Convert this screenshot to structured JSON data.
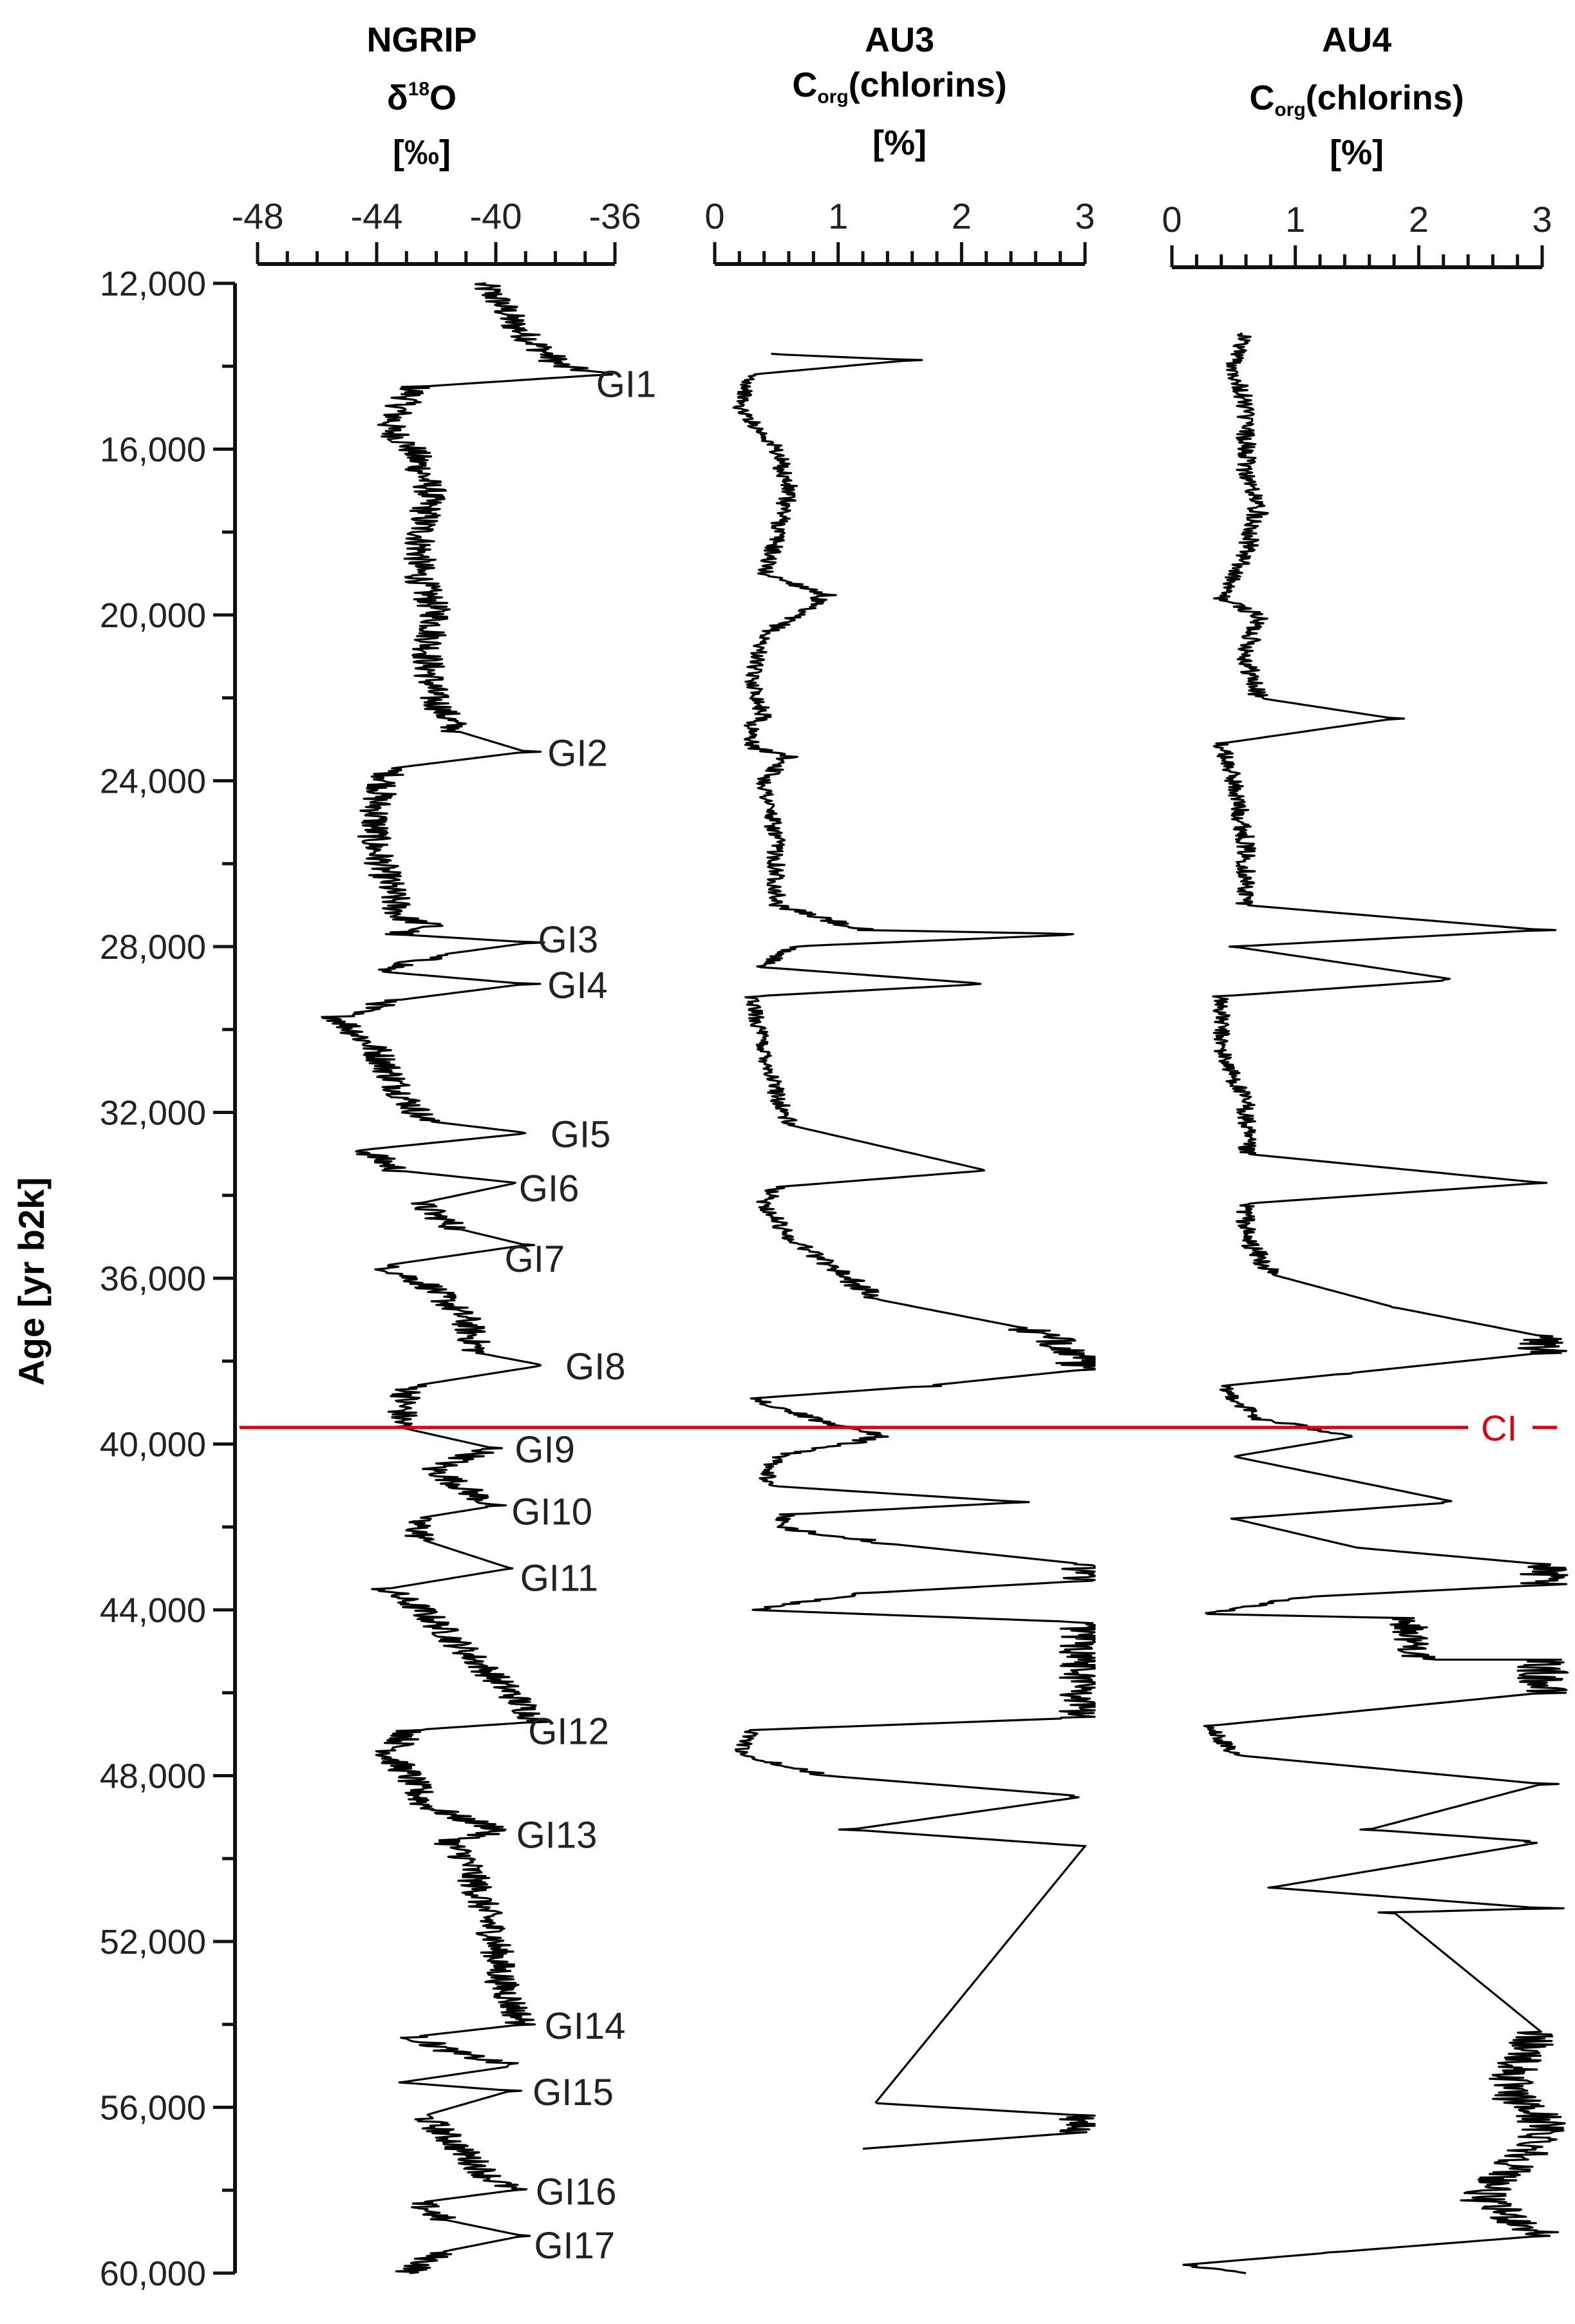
{
  "chart_data": [
    {
      "type": "line",
      "panel": "NGRIP",
      "title": "NGRIP",
      "xlabel_symbol": "δ",
      "xlabel_sup": "18",
      "xlabel_base": "O",
      "xunit": "[‰]",
      "xlim": [
        -48,
        -36
      ],
      "xticks": [
        "-48",
        "-44",
        "-40",
        "-36"
      ],
      "ylim": [
        12000,
        60000
      ],
      "ylabel": "Age [yr b2k]",
      "yticks": [
        "12,000",
        "16,000",
        "20,000",
        "24,000",
        "28,000",
        "32,000",
        "36,000",
        "40,000",
        "44,000",
        "48,000",
        "52,000",
        "56,000",
        "60,000"
      ],
      "series": [
        {
          "profile": [
            [
              12000,
              -40.5
            ],
            [
              12500,
              -39.8
            ],
            [
              13000,
              -39.4
            ],
            [
              13500,
              -38.6
            ],
            [
              14000,
              -37.8
            ],
            [
              14200,
              -36.3
            ],
            [
              14500,
              -42.7
            ],
            [
              15000,
              -43.2
            ],
            [
              15500,
              -43.6
            ],
            [
              16000,
              -42.8
            ],
            [
              17000,
              -42.2
            ],
            [
              18000,
              -42.5
            ],
            [
              19000,
              -42.6
            ],
            [
              20000,
              -42.0
            ],
            [
              21000,
              -42.3
            ],
            [
              22000,
              -42.1
            ],
            [
              22800,
              -41.3
            ],
            [
              23300,
              -39.0
            ],
            [
              23700,
              -43.5
            ],
            [
              24500,
              -44.0
            ],
            [
              25500,
              -44.1
            ],
            [
              26500,
              -43.6
            ],
            [
              27300,
              -43.2
            ],
            [
              27500,
              -42.1
            ],
            [
              27700,
              -43.4
            ],
            [
              27900,
              -38.8
            ],
            [
              28200,
              -41.9
            ],
            [
              28600,
              -43.9
            ],
            [
              28900,
              -39.0
            ],
            [
              29300,
              -43.4
            ],
            [
              29700,
              -45.3
            ],
            [
              30500,
              -44.0
            ],
            [
              31500,
              -43.2
            ],
            [
              32200,
              -42.4
            ],
            [
              32500,
              -38.9
            ],
            [
              32900,
              -44.4
            ],
            [
              33400,
              -43.3
            ],
            [
              33700,
              -39.3
            ],
            [
              34200,
              -42.6
            ],
            [
              34800,
              -41.3
            ],
            [
              35200,
              -39.0
            ],
            [
              35700,
              -43.8
            ],
            [
              36200,
              -42.2
            ],
            [
              37000,
              -41.0
            ],
            [
              37800,
              -40.6
            ],
            [
              38100,
              -38.4
            ],
            [
              38600,
              -42.8
            ],
            [
              39000,
              -43.1
            ],
            [
              39600,
              -43.2
            ],
            [
              40100,
              -40.1
            ],
            [
              40600,
              -42.1
            ],
            [
              41000,
              -41.2
            ],
            [
              41500,
              -40.1
            ],
            [
              41800,
              -42.7
            ],
            [
              42300,
              -42.5
            ],
            [
              43000,
              -39.5
            ],
            [
              43500,
              -43.7
            ],
            [
              44000,
              -42.5
            ],
            [
              45000,
              -41.0
            ],
            [
              46000,
              -39.5
            ],
            [
              46700,
              -38.6
            ],
            [
              46900,
              -42.8
            ],
            [
              47500,
              -43.6
            ],
            [
              48000,
              -42.9
            ],
            [
              48700,
              -42.4
            ],
            [
              49000,
              -41.3
            ],
            [
              49300,
              -39.8
            ],
            [
              49600,
              -41.6
            ],
            [
              50000,
              -41.0
            ],
            [
              51000,
              -40.5
            ],
            [
              52000,
              -40.0
            ],
            [
              53000,
              -39.8
            ],
            [
              54000,
              -39.1
            ],
            [
              54300,
              -42.8
            ],
            [
              54700,
              -41.3
            ],
            [
              55000,
              -39.4
            ],
            [
              55400,
              -43.2
            ],
            [
              55600,
              -39.5
            ],
            [
              56200,
              -42.4
            ],
            [
              57000,
              -41.2
            ],
            [
              57700,
              -40.2
            ],
            [
              58000,
              -39.4
            ],
            [
              58300,
              -42.6
            ],
            [
              58700,
              -41.8
            ],
            [
              59100,
              -39.1
            ],
            [
              59500,
              -41.9
            ],
            [
              60000,
              -42.9
            ]
          ]
        }
      ],
      "annotations": [
        {
          "text": "GI1",
          "age": 14400
        },
        {
          "text": "GI2",
          "age": 23300
        },
        {
          "text": "GI3",
          "age": 27800
        },
        {
          "text": "GI4",
          "age": 28900
        },
        {
          "text": "GI5",
          "age": 32500
        },
        {
          "text": "GI6",
          "age": 33800
        },
        {
          "text": "GI7",
          "age": 35500
        },
        {
          "text": "GI8",
          "age": 38100
        },
        {
          "text": "GI9",
          "age": 40100
        },
        {
          "text": "GI10",
          "age": 41600
        },
        {
          "text": "GI11",
          "age": 43200
        },
        {
          "text": "GI12",
          "age": 46900
        },
        {
          "text": "GI13",
          "age": 49400
        },
        {
          "text": "GI14",
          "age": 54000
        },
        {
          "text": "GI15",
          "age": 55600
        },
        {
          "text": "GI16",
          "age": 58000
        },
        {
          "text": "GI17",
          "age": 59300
        }
      ]
    },
    {
      "type": "line",
      "panel": "AU3",
      "title": "AU3",
      "xlabel_base": "C",
      "xlabel_sub": "org",
      "xlabel_rest": "(chlorins)",
      "xunit": "[%]",
      "xlim": [
        0,
        3
      ],
      "xticks": [
        "0",
        "1",
        "2",
        "3"
      ],
      "series": [
        {
          "profile": [
            [
              13700,
              0.4
            ],
            [
              13850,
              1.6
            ],
            [
              14200,
              0.3
            ],
            [
              15000,
              0.2
            ],
            [
              16000,
              0.5
            ],
            [
              17000,
              0.6
            ],
            [
              18200,
              0.5
            ],
            [
              19000,
              0.4
            ],
            [
              19500,
              0.9
            ],
            [
              20500,
              0.4
            ],
            [
              21500,
              0.3
            ],
            [
              22500,
              0.4
            ],
            [
              22600,
              0.3
            ],
            [
              23200,
              0.3
            ],
            [
              23400,
              0.6
            ],
            [
              24000,
              0.4
            ],
            [
              25500,
              0.5
            ],
            [
              27000,
              0.5
            ],
            [
              27600,
              1.2
            ],
            [
              27700,
              3.0
            ],
            [
              28000,
              0.6
            ],
            [
              28500,
              0.4
            ],
            [
              28900,
              2.2
            ],
            [
              29200,
              0.3
            ],
            [
              30500,
              0.4
            ],
            [
              31500,
              0.5
            ],
            [
              32300,
              0.6
            ],
            [
              33400,
              2.2
            ],
            [
              33800,
              0.5
            ],
            [
              34200,
              0.4
            ],
            [
              35000,
              0.6
            ],
            [
              35800,
              1.0
            ],
            [
              36500,
              1.3
            ],
            [
              37200,
              2.5
            ],
            [
              37700,
              2.9
            ],
            [
              38200,
              3.0
            ],
            [
              38600,
              1.7
            ],
            [
              38900,
              0.3
            ],
            [
              39400,
              0.8
            ],
            [
              39800,
              1.4
            ],
            [
              40300,
              0.5
            ],
            [
              41000,
              0.4
            ],
            [
              41400,
              2.5
            ],
            [
              41700,
              0.6
            ],
            [
              42000,
              0.5
            ],
            [
              42400,
              1.4
            ],
            [
              42900,
              3.0
            ],
            [
              43300,
              3.0
            ],
            [
              43600,
              1.2
            ],
            [
              44000,
              0.3
            ],
            [
              44300,
              3.0
            ],
            [
              46600,
              3.0
            ],
            [
              46900,
              0.3
            ],
            [
              47500,
              0.2
            ],
            [
              48000,
              0.9
            ],
            [
              48500,
              3.0
            ],
            [
              49300,
              1.1
            ],
            [
              49700,
              3.0
            ],
            [
              55900,
              1.3
            ],
            [
              56200,
              3.0
            ],
            [
              56600,
              3.0
            ],
            [
              57000,
              1.2
            ]
          ]
        }
      ]
    },
    {
      "type": "line",
      "panel": "AU4",
      "title": "AU4",
      "xlabel_base": "C",
      "xlabel_sub": "org",
      "xlabel_rest": "(chlorins)",
      "xunit": "[%]",
      "xlim": [
        0,
        3
      ],
      "xticks": [
        "0",
        "1",
        "2",
        "3"
      ],
      "series": [
        {
          "profile": [
            [
              13200,
              0.6
            ],
            [
              14000,
              0.5
            ],
            [
              15000,
              0.6
            ],
            [
              16500,
              0.6
            ],
            [
              17500,
              0.7
            ],
            [
              18500,
              0.6
            ],
            [
              19600,
              0.4
            ],
            [
              20000,
              0.7
            ],
            [
              21000,
              0.6
            ],
            [
              22000,
              0.7
            ],
            [
              22500,
              1.8
            ],
            [
              23100,
              0.4
            ],
            [
              24000,
              0.5
            ],
            [
              25500,
              0.6
            ],
            [
              27000,
              0.6
            ],
            [
              27600,
              3.0
            ],
            [
              28000,
              0.5
            ],
            [
              28800,
              2.3
            ],
            [
              29200,
              0.4
            ],
            [
              30500,
              0.4
            ],
            [
              31800,
              0.6
            ],
            [
              33000,
              0.6
            ],
            [
              33700,
              3.0
            ],
            [
              34200,
              0.6
            ],
            [
              35000,
              0.6
            ],
            [
              35900,
              0.8
            ],
            [
              36700,
              1.8
            ],
            [
              37400,
              3.0
            ],
            [
              37800,
              3.0
            ],
            [
              38300,
              1.4
            ],
            [
              38600,
              0.4
            ],
            [
              39400,
              0.7
            ],
            [
              39800,
              1.5
            ],
            [
              40300,
              0.5
            ],
            [
              41400,
              2.3
            ],
            [
              41800,
              0.5
            ],
            [
              42500,
              1.5
            ],
            [
              42900,
              3.0
            ],
            [
              43400,
              3.0
            ],
            [
              43700,
              1.0
            ],
            [
              44100,
              0.3
            ],
            [
              44200,
              1.9
            ],
            [
              45200,
              2.0
            ],
            [
              45200,
              3.0
            ],
            [
              46000,
              3.0
            ],
            [
              46800,
              0.3
            ],
            [
              47500,
              0.5
            ],
            [
              48200,
              3.0
            ],
            [
              49300,
              1.6
            ],
            [
              49600,
              3.0
            ],
            [
              50700,
              0.8
            ],
            [
              51200,
              3.0
            ],
            [
              51300,
              1.8
            ],
            [
              54200,
              3.0
            ],
            [
              55000,
              2.8
            ],
            [
              55600,
              2.7
            ],
            [
              56300,
              3.0
            ],
            [
              56800,
              3.0
            ],
            [
              58200,
              2.5
            ],
            [
              59100,
              3.0
            ],
            [
              59500,
              1.3
            ],
            [
              59800,
              0.1
            ],
            [
              60000,
              0.6
            ]
          ]
        }
      ]
    }
  ],
  "event_line": {
    "label": "CI",
    "age": 39600,
    "color": "#e0000f"
  }
}
